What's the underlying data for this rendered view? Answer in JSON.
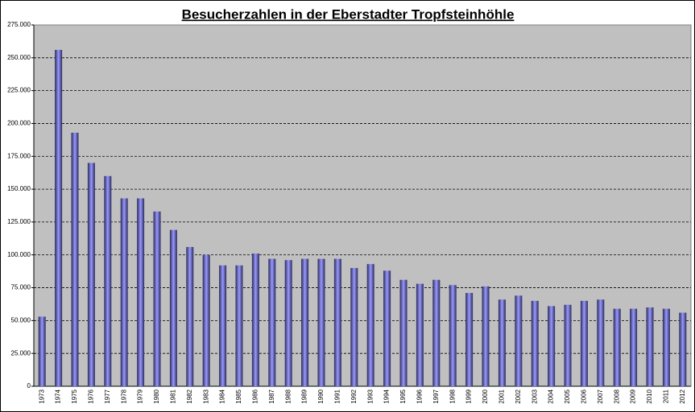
{
  "chart_data": {
    "type": "bar",
    "title": "Besucherzahlen in der Eberstadter Tropfsteinhöhle",
    "categories": [
      "1973",
      "1974",
      "1975",
      "1976",
      "1977",
      "1978",
      "1979",
      "1980",
      "1981",
      "1982",
      "1983",
      "1984",
      "1985",
      "1986",
      "1987",
      "1988",
      "1989",
      "1990",
      "1991",
      "1992",
      "1993",
      "1994",
      "1995",
      "1996",
      "1997",
      "1998",
      "1999",
      "2000",
      "2001",
      "2002",
      "2003",
      "2004",
      "2005",
      "2006",
      "2007",
      "2008",
      "2009",
      "2010",
      "2011",
      "2012"
    ],
    "values": [
      53000,
      256000,
      193000,
      170000,
      160000,
      143000,
      143000,
      133000,
      119000,
      106000,
      100000,
      92000,
      92000,
      101000,
      97000,
      96000,
      97000,
      97000,
      97000,
      90000,
      93000,
      88000,
      81000,
      78000,
      81000,
      77000,
      71000,
      76000,
      66000,
      69000,
      65000,
      61000,
      62000,
      65000,
      66000,
      59000,
      59000,
      60000,
      59000,
      56000
    ],
    "color": "#9999ff",
    "ylim": [
      0,
      275000
    ],
    "yticks": [
      0,
      {
        "value": 25000,
        "label": "25.000"
      },
      {
        "value": 50000,
        "label": "50.000"
      },
      {
        "value": 75000,
        "label": "75.000"
      },
      {
        "value": 100000,
        "label": "100.000"
      },
      {
        "value": 125000,
        "label": "125.000"
      },
      {
        "value": 150000,
        "label": "150.000"
      },
      {
        "value": 175000,
        "label": "175.000"
      },
      {
        "value": 200000,
        "label": "200.000"
      },
      {
        "value": 225000,
        "label": "225.000"
      },
      {
        "value": 250000,
        "label": "250.000"
      },
      {
        "value": 275000,
        "label": "275.000"
      }
    ],
    "grid": true
  }
}
